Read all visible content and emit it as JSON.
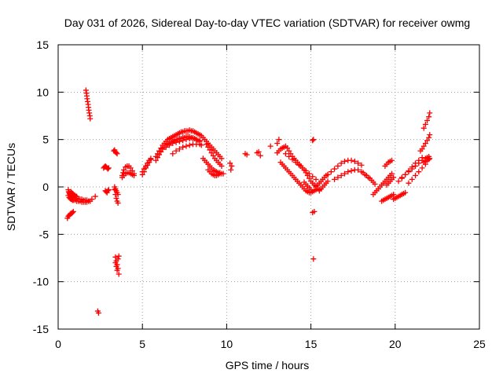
{
  "chart_data": {
    "type": "scatter",
    "title": "Day 031 of 2026, Sidereal Day-to-day VTEC variation (SDTVAR) for receiver owmg",
    "xlabel": "GPS time / hours",
    "ylabel": "SDTVAR / TECUs",
    "xlim": [
      0,
      25
    ],
    "ylim": [
      -15,
      15
    ],
    "x_ticks": [
      0,
      5,
      10,
      15,
      20,
      25
    ],
    "y_ticks": [
      -15,
      -10,
      -5,
      0,
      5,
      10,
      15
    ],
    "x_tick_labels": [
      "0",
      "5",
      "10",
      "15",
      "20",
      "25"
    ],
    "y_tick_labels": [
      "-15",
      "-10",
      "-5",
      "0",
      "5",
      "10",
      "15"
    ],
    "grid": true,
    "marker": "plus",
    "color": "#ff0000",
    "series": [
      {
        "name": "SDTVAR",
        "x": [
          0.55,
          0.6,
          0.65,
          0.7,
          0.75,
          0.8,
          0.85,
          0.9,
          0.6,
          0.65,
          0.7,
          0.75,
          0.8,
          0.85,
          0.9,
          1.0,
          1.1,
          1.2,
          1.3,
          1.4,
          1.5,
          1.6,
          1.7,
          1.8,
          1.9,
          2.0,
          2.2,
          0.6,
          0.62,
          0.65,
          0.68,
          0.7,
          0.72,
          0.75,
          0.8,
          0.85,
          0.9,
          1.0,
          1.1,
          1.2,
          1.3,
          1.4,
          1.5,
          1.6,
          1.7,
          0.75,
          0.8,
          0.85,
          0.9,
          0.95,
          1.0,
          1.05,
          1.1,
          1.65,
          1.68,
          1.7,
          1.72,
          1.75,
          1.78,
          1.8,
          1.82,
          1.85,
          1.88,
          1.9,
          2.35,
          2.4,
          2.7,
          2.75,
          2.8,
          2.85,
          2.9,
          2.95,
          3.0,
          2.8,
          2.85,
          2.9,
          2.95,
          3.0,
          3.3,
          3.35,
          3.4,
          3.45,
          3.5,
          3.35,
          3.4,
          3.45,
          3.5,
          3.55,
          3.35,
          3.4,
          3.45,
          3.5,
          3.55,
          3.4,
          3.45,
          3.5,
          3.55,
          3.6,
          3.4,
          3.45,
          3.5,
          3.55,
          3.6,
          3.8,
          3.85,
          3.9,
          4.0,
          4.1,
          4.2,
          4.3,
          4.4,
          4.5,
          3.8,
          3.9,
          4.0,
          4.1,
          4.2,
          4.3,
          4.4,
          4.5,
          5.0,
          5.1,
          5.2,
          5.3,
          5.4,
          5.5,
          5.0,
          5.1,
          5.2,
          5.3,
          5.4,
          5.5,
          5.8,
          5.9,
          6.0,
          6.1,
          6.2,
          6.3,
          6.4,
          6.5,
          6.6,
          6.7,
          6.8,
          6.9,
          7.0,
          7.1,
          7.2,
          7.3,
          7.4,
          7.5,
          7.6,
          7.7,
          7.8,
          7.9,
          8.0,
          8.1,
          8.2,
          8.3,
          8.4,
          5.8,
          5.9,
          6.0,
          6.1,
          6.2,
          6.3,
          6.4,
          6.5,
          6.6,
          6.7,
          6.8,
          6.9,
          7.0,
          7.1,
          7.2,
          7.3,
          7.4,
          7.5,
          7.6,
          7.7,
          7.8,
          7.9,
          8.0,
          8.1,
          8.2,
          8.3,
          8.4,
          6.0,
          6.2,
          6.4,
          6.6,
          6.8,
          7.0,
          7.2,
          7.4,
          7.6,
          7.8,
          8.0,
          8.2,
          8.4,
          6.8,
          7.0,
          7.2,
          7.4,
          7.6,
          7.8,
          8.0,
          8.2,
          8.4,
          8.5,
          8.5,
          8.6,
          8.7,
          8.8,
          8.9,
          9.0,
          9.1,
          9.2,
          9.3,
          9.4,
          9.5,
          9.6,
          9.7,
          8.6,
          8.7,
          8.8,
          8.9,
          9.0,
          9.1,
          9.2,
          9.3,
          9.4,
          9.5,
          9.6,
          9.7,
          9.8,
          8.8,
          8.9,
          9.0,
          9.1,
          9.2,
          9.3,
          9.4,
          9.5,
          9.6,
          9.7,
          8.9,
          9.0,
          9.1,
          9.2,
          9.3,
          9.4,
          9.5,
          9.6,
          10.2,
          10.3,
          10.25,
          11.2,
          11.1,
          11.8,
          11.9,
          12.0,
          12.6,
          13.0,
          13.1,
          13.0,
          13.1,
          13.2,
          13.3,
          13.4,
          13.5,
          13.6,
          13.7,
          13.8,
          13.9,
          14.0,
          14.1,
          14.2,
          14.3,
          14.4,
          14.5,
          14.6,
          14.7,
          14.8,
          14.9,
          15.0,
          15.1,
          15.2,
          15.3,
          15.4,
          15.5,
          13.2,
          13.3,
          13.4,
          13.5,
          13.6,
          13.7,
          13.8,
          13.9,
          14.0,
          14.1,
          14.2,
          14.3,
          14.4,
          14.5,
          14.6,
          14.7,
          14.8,
          14.9,
          15.0,
          15.1,
          15.2,
          15.3,
          13.5,
          13.7,
          13.9,
          14.1,
          14.3,
          14.5,
          14.7,
          14.9,
          15.1,
          15.3,
          14.6,
          14.7,
          14.8,
          14.9,
          15.0,
          15.1,
          15.15,
          15.2,
          15.1,
          15.15,
          15.3,
          15.4,
          15.5,
          15.6,
          15.7,
          15.8,
          15.9,
          16.0,
          15.5,
          15.6,
          15.7,
          15.8,
          15.9,
          16.0,
          16.0,
          16.2,
          16.4,
          16.6,
          16.8,
          17.0,
          17.2,
          17.4,
          17.6,
          17.8,
          18.0,
          16.4,
          16.6,
          16.8,
          17.0,
          17.2,
          17.4,
          17.6,
          17.8,
          18.0,
          18.1,
          18.2,
          18.3,
          18.4,
          18.5,
          18.6,
          18.7,
          18.8,
          18.7,
          18.8,
          18.9,
          19.0,
          19.1,
          19.2,
          19.3,
          19.4,
          19.5,
          19.6,
          19.7,
          19.8,
          19.2,
          19.3,
          19.4,
          19.5,
          19.6,
          19.7,
          19.8,
          19.9,
          19.4,
          19.5,
          19.6,
          19.7,
          19.8,
          19.5,
          19.6,
          19.7,
          19.8,
          19.9,
          19.9,
          20.0,
          20.1,
          20.2,
          20.3,
          20.4,
          20.5,
          20.6,
          20.2,
          20.4,
          20.6,
          20.8,
          21.0,
          21.2,
          21.4,
          21.6,
          20.4,
          20.6,
          20.8,
          21.0,
          21.2,
          21.4,
          21.6,
          21.8,
          21.9,
          22.0,
          20.8,
          21.0,
          21.2,
          21.4,
          21.6,
          21.8,
          21.5,
          21.6,
          21.7,
          21.8,
          21.9,
          22.0,
          22.05,
          21.7,
          21.8,
          21.9,
          22.0,
          22.05,
          21.7,
          21.8,
          21.9,
          22.0,
          22.05
        ],
        "y": [
          -3.3,
          -3.1,
          -3.0,
          -2.9,
          -2.8,
          -2.8,
          -2.7,
          -2.6,
          -0.9,
          -1.1,
          -1.2,
          -1.3,
          -1.3,
          -1.4,
          -1.4,
          -1.4,
          -1.5,
          -1.5,
          -1.5,
          -1.6,
          -1.6,
          -1.6,
          -1.6,
          -1.5,
          -1.5,
          -1.3,
          -1.0,
          -0.3,
          -0.5,
          -0.6,
          -0.7,
          -0.8,
          -0.9,
          -1.0,
          -1.0,
          -1.1,
          -1.1,
          -1.2,
          -1.2,
          -1.3,
          -1.3,
          -1.3,
          -1.4,
          -1.4,
          -1.4,
          -0.5,
          -0.6,
          -0.7,
          -0.8,
          -0.9,
          -0.9,
          -1.0,
          -1.0,
          10.2,
          9.9,
          9.6,
          9.3,
          9.0,
          8.7,
          8.4,
          8.1,
          7.8,
          7.5,
          7.2,
          -13.1,
          -13.3,
          2.0,
          2.1,
          2.2,
          2.1,
          2.0,
          1.9,
          2.0,
          -0.4,
          -0.5,
          -0.6,
          -0.4,
          -0.3,
          3.8,
          3.9,
          3.7,
          3.6,
          3.5,
          -0.3,
          -0.8,
          -1.2,
          -1.5,
          -1.7,
          0.0,
          -0.2,
          -0.4,
          -0.6,
          -0.8,
          -7.4,
          -7.8,
          -8.2,
          -8.6,
          -9.2,
          -8.0,
          -8.4,
          -8.8,
          -7.6,
          -7.3,
          1.2,
          1.5,
          1.8,
          2.1,
          2.2,
          2.2,
          2.0,
          1.7,
          1.4,
          1.0,
          1.2,
          1.4,
          1.5,
          1.5,
          1.4,
          1.3,
          1.2,
          1.3,
          1.6,
          2.0,
          2.3,
          2.6,
          2.9,
          1.6,
          1.9,
          2.2,
          2.5,
          2.8,
          3.0,
          3.2,
          3.5,
          3.8,
          4.1,
          4.4,
          4.6,
          4.8,
          5.0,
          5.1,
          5.2,
          5.3,
          5.4,
          5.5,
          5.6,
          5.7,
          5.8,
          5.8,
          5.9,
          5.9,
          5.9,
          6.0,
          5.9,
          5.9,
          5.8,
          5.7,
          5.6,
          5.5,
          2.8,
          3.1,
          3.4,
          3.7,
          4.0,
          4.2,
          4.4,
          4.5,
          4.6,
          4.7,
          4.8,
          4.9,
          5.0,
          5.0,
          5.1,
          5.1,
          5.2,
          5.2,
          5.3,
          5.3,
          5.3,
          5.2,
          5.2,
          5.1,
          5.0,
          4.9,
          4.8,
          3.8,
          4.0,
          4.2,
          4.4,
          4.6,
          4.7,
          4.8,
          4.9,
          5.0,
          5.1,
          5.1,
          5.0,
          4.9,
          3.5,
          3.8,
          4.0,
          4.2,
          4.3,
          4.4,
          4.5,
          4.5,
          4.5,
          4.4,
          5.4,
          5.2,
          5.0,
          4.8,
          4.6,
          4.4,
          4.2,
          4.0,
          3.8,
          3.6,
          3.4,
          3.2,
          3.0,
          3.0,
          2.8,
          2.6,
          2.4,
          2.2,
          2.0,
          1.8,
          1.7,
          1.6,
          1.5,
          1.5,
          1.4,
          1.4,
          4.5,
          4.2,
          3.9,
          3.6,
          3.3,
          3.0,
          2.8,
          2.6,
          2.4,
          2.2,
          1.8,
          1.6,
          1.4,
          1.3,
          1.2,
          1.2,
          1.3,
          1.4,
          2.5,
          2.2,
          1.8,
          3.4,
          3.5,
          3.6,
          3.7,
          3.3,
          4.3,
          4.6,
          5.0,
          3.6,
          3.8,
          4.0,
          4.1,
          4.2,
          4.3,
          4.1,
          3.8,
          3.5,
          3.2,
          3.0,
          2.8,
          2.6,
          2.4,
          2.2,
          2.0,
          1.8,
          1.5,
          1.2,
          0.9,
          0.6,
          0.4,
          0.2,
          0.0,
          -0.2,
          -0.3,
          2.6,
          2.4,
          2.2,
          2.0,
          1.8,
          1.6,
          1.4,
          1.2,
          1.0,
          0.8,
          0.6,
          0.4,
          0.2,
          0.0,
          -0.2,
          -0.4,
          -0.5,
          -0.6,
          -0.6,
          -0.5,
          -0.4,
          -0.3,
          3.5,
          3.2,
          2.9,
          2.6,
          2.3,
          2.0,
          1.7,
          1.4,
          1.1,
          0.8,
          0.5,
          0.3,
          0.1,
          -0.1,
          -0.3,
          4.9,
          5.0,
          -2.6,
          -2.7,
          -7.6,
          0.1,
          0.2,
          0.4,
          0.6,
          0.8,
          1.0,
          1.2,
          1.3,
          -0.4,
          -0.2,
          0.0,
          0.2,
          0.4,
          0.6,
          1.3,
          1.6,
          1.9,
          2.2,
          2.5,
          2.7,
          2.8,
          2.8,
          2.7,
          2.5,
          2.3,
          0.8,
          1.0,
          1.2,
          1.4,
          1.6,
          1.7,
          1.8,
          1.8,
          1.6,
          1.5,
          1.3,
          1.2,
          1.0,
          0.9,
          0.7,
          0.5,
          0.3,
          -0.8,
          -0.6,
          -0.4,
          -0.2,
          0.0,
          0.2,
          0.4,
          0.6,
          0.8,
          1.0,
          1.2,
          1.4,
          -1.5,
          -1.4,
          -1.3,
          -1.2,
          -1.1,
          -1.0,
          -0.9,
          -0.8,
          2.2,
          2.4,
          2.6,
          2.7,
          2.8,
          0.2,
          0.4,
          0.6,
          0.8,
          1.0,
          -1.3,
          -1.2,
          -1.1,
          -1.0,
          -0.9,
          -0.8,
          -0.7,
          -0.6,
          0.6,
          0.9,
          1.3,
          1.7,
          2.1,
          2.5,
          2.8,
          3.1,
          1.0,
          1.3,
          1.6,
          1.9,
          2.2,
          2.5,
          2.8,
          3.0,
          3.1,
          3.2,
          0.4,
          0.8,
          1.2,
          1.6,
          2.0,
          2.4,
          3.8,
          4.0,
          4.3,
          4.6,
          4.9,
          5.2,
          5.5,
          6.2,
          6.6,
          7.0,
          7.4,
          7.8,
          2.6,
          2.7,
          2.8,
          2.9,
          3.0
        ]
      }
    ]
  }
}
